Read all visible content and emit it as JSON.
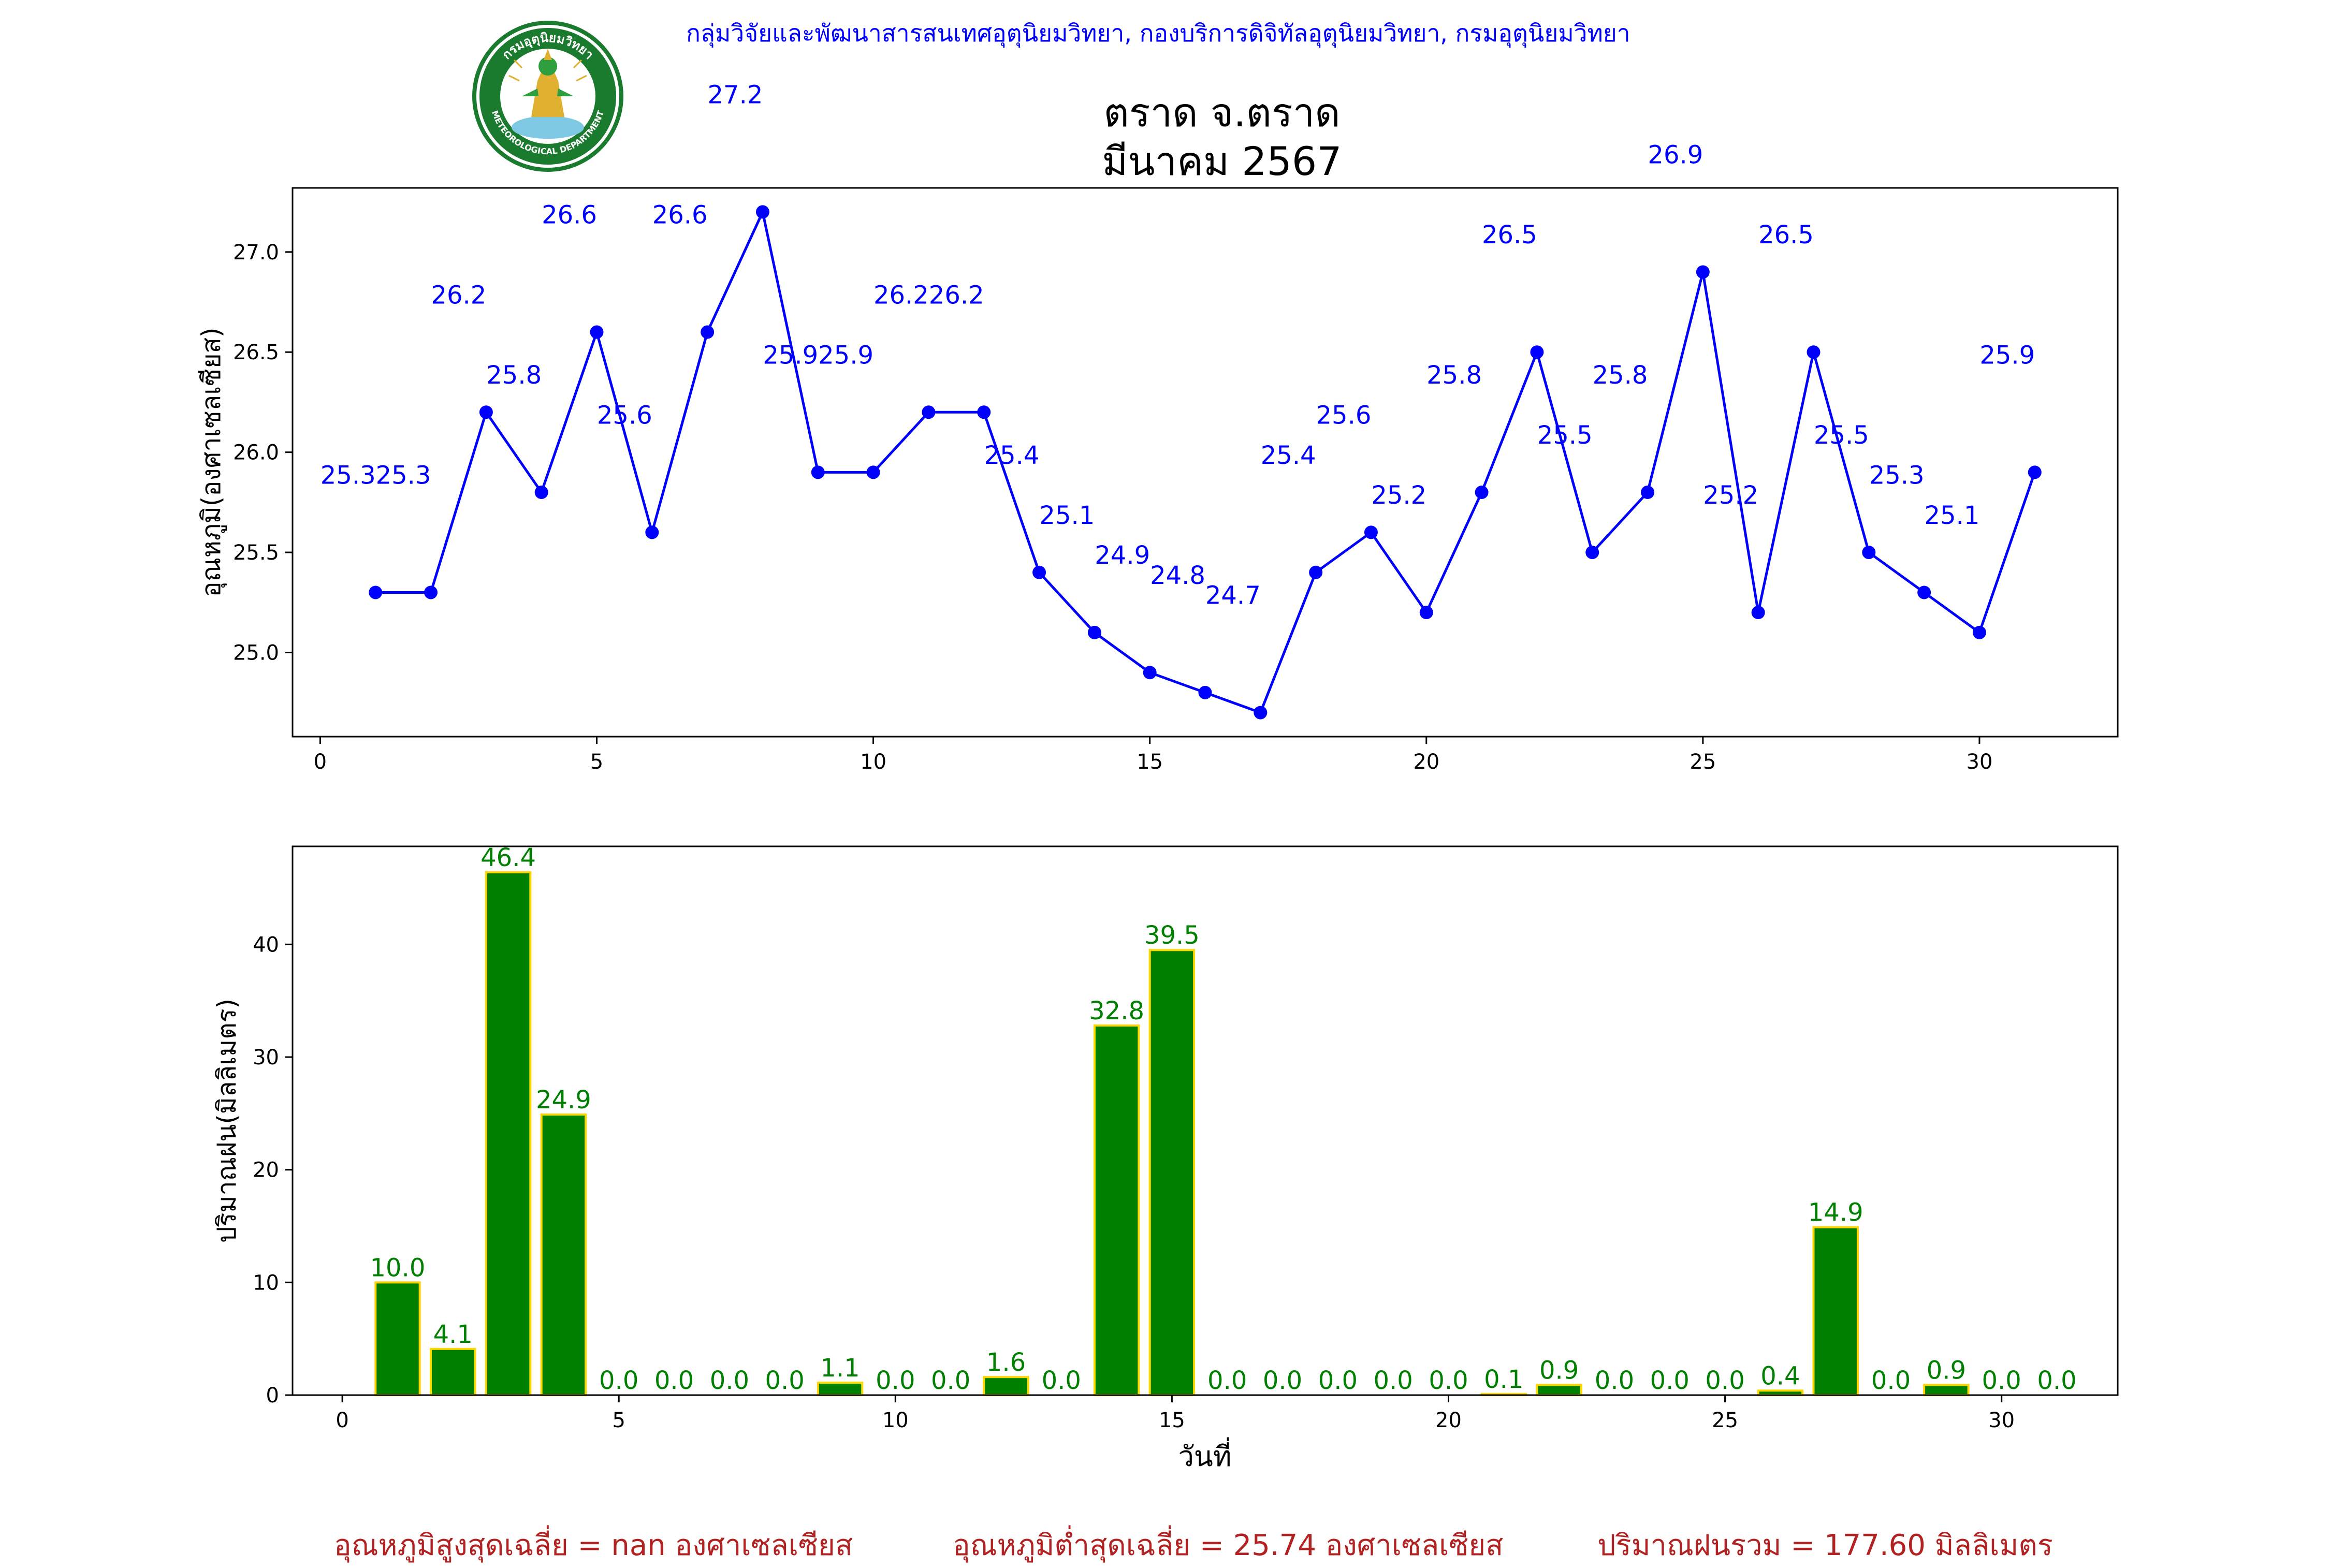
{
  "header": {
    "organization": "กลุ่มวิจัยและพัฒนาสารสนเทศอุตุนิยมวิทยา, กองบริการดิจิทัลอุตุนิยมวิทยา, กรมอุตุนิยมวิทยา",
    "title_line1": "ตราด จ.ตราด",
    "title_line2": "มีนาคม 2567"
  },
  "logo": {
    "text_top": "กรมอุตุนิยมวิทยา",
    "text_bottom": "METEOROLOGICAL DEPARTMENT"
  },
  "colors": {
    "temperature": "#0000ff",
    "rain_bar": "#008000",
    "rain_edge": "#ffd700",
    "footer": "#b22222"
  },
  "chart_data": [
    {
      "type": "line",
      "x": [
        1,
        2,
        3,
        4,
        5,
        6,
        7,
        8,
        9,
        10,
        11,
        12,
        13,
        14,
        15,
        16,
        17,
        18,
        19,
        20,
        21,
        22,
        23,
        24,
        25,
        26,
        27,
        28,
        29,
        30,
        31
      ],
      "series": [
        {
          "values": [
            25.3,
            25.3,
            26.2,
            25.8,
            26.6,
            25.6,
            26.6,
            27.2,
            25.9,
            25.9,
            26.2,
            26.2,
            25.4,
            25.1,
            24.9,
            24.8,
            24.7,
            25.4,
            25.6,
            25.2,
            25.8,
            26.5,
            25.5,
            25.8,
            26.9,
            25.2,
            26.5,
            25.5,
            25.3,
            25.1,
            25.9
          ]
        }
      ],
      "data_labels": [
        "25.3",
        "25.3",
        "26.2",
        "25.8",
        "26.6",
        "25.6",
        "26.6",
        "27.2",
        "25.9",
        "25.9",
        "26.2",
        "26.2",
        "25.4",
        "25.1",
        "24.9",
        "24.8",
        "24.7",
        "25.4",
        "25.6",
        "25.2",
        "25.8",
        "26.5",
        "25.5",
        "25.8",
        "26.9",
        "25.2",
        "26.5",
        "25.5",
        "25.3",
        "25.1",
        "25.9"
      ],
      "ylabel": "อุณหภูมิ(องศาเซลเซียส)",
      "xlim": [
        -0.5,
        32.5
      ],
      "ylim": [
        24.58,
        27.32
      ],
      "xticks": [
        0,
        5,
        10,
        15,
        20,
        25,
        30
      ],
      "yticks": [
        25.0,
        25.5,
        26.0,
        26.5,
        27.0
      ],
      "ytick_labels": [
        "25.0",
        "25.5",
        "26.0",
        "26.5",
        "27.0"
      ]
    },
    {
      "type": "bar",
      "x": [
        1,
        2,
        3,
        4,
        5,
        6,
        7,
        8,
        9,
        10,
        11,
        12,
        13,
        14,
        15,
        16,
        17,
        18,
        19,
        20,
        21,
        22,
        23,
        24,
        25,
        26,
        27,
        28,
        29,
        30,
        31
      ],
      "series": [
        {
          "values": [
            10.0,
            4.1,
            46.4,
            24.9,
            0.0,
            0.0,
            0.0,
            0.0,
            1.1,
            0.0,
            0.0,
            1.6,
            0.0,
            32.8,
            39.5,
            0.0,
            0.0,
            0.0,
            0.0,
            0.0,
            0.1,
            0.9,
            0.0,
            0.0,
            0.0,
            0.4,
            14.9,
            0.0,
            0.9,
            0.0,
            0.0
          ]
        }
      ],
      "data_labels": [
        "10.0",
        "4.1",
        "46.4",
        "24.9",
        "0.0",
        "0.0",
        "0.0",
        "0.0",
        "1.1",
        "0.0",
        "0.0",
        "1.6",
        "0.0",
        "32.8",
        "39.5",
        "0.0",
        "0.0",
        "0.0",
        "0.0",
        "0.0",
        "0.1",
        "0.9",
        "0.0",
        "0.0",
        "0.0",
        "0.4",
        "14.9",
        "0.0",
        "0.9",
        "0.0",
        "0.0"
      ],
      "xlabel": "วันที่",
      "ylabel": "ปริมาณฝน(มิลลิเมตร)",
      "xlim": [
        -0.9,
        32.1
      ],
      "ylim": [
        0,
        48.7
      ],
      "xticks": [
        0,
        5,
        10,
        15,
        20,
        25,
        30
      ],
      "yticks": [
        0,
        10,
        20,
        30,
        40
      ]
    }
  ],
  "footer": {
    "avg_max_temp": "อุณหภูมิสูงสุดเฉลี่ย = nan องศาเซลเซียส",
    "avg_min_temp": "อุณหภูมิต่ำสุดเฉลี่ย = 25.74 องศาเซลเซียส",
    "total_rain": "ปริมาณฝนรวม = 177.60 มิลลิเมตร"
  }
}
